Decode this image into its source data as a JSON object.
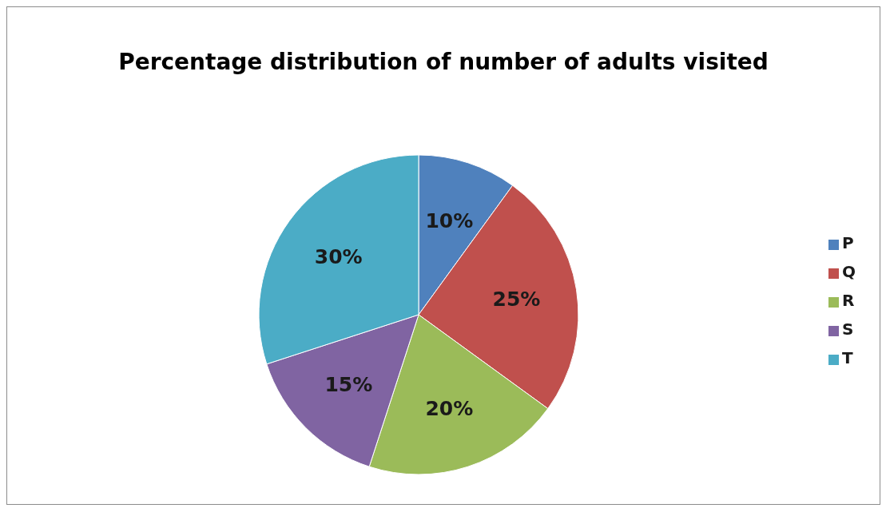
{
  "chart_data": {
    "type": "pie",
    "title": "Percentage distribution of number of adults visited",
    "categories": [
      "P",
      "Q",
      "R",
      "S",
      "T"
    ],
    "values": [
      10,
      25,
      20,
      15,
      30
    ],
    "colors": [
      "#4f81bd",
      "#c0504d",
      "#9bbb59",
      "#8064a2",
      "#4bacc6"
    ],
    "value_labels": [
      "10%",
      "25%",
      "20%",
      "15%",
      "30%"
    ],
    "legend": "right"
  }
}
